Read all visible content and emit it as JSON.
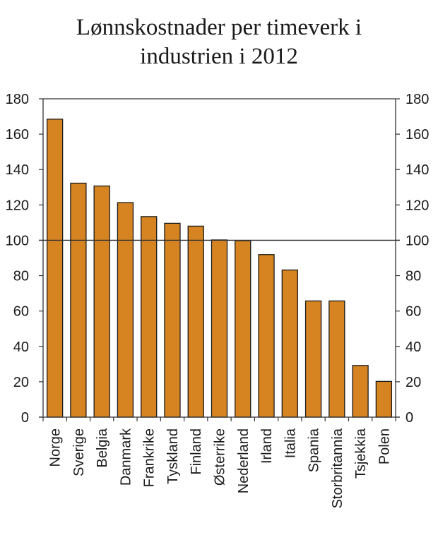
{
  "chart_data": {
    "type": "bar",
    "title": [
      "Lønnskostnader per timeverk i",
      "industrien i 2012"
    ],
    "categories": [
      "Norge",
      "Sverige",
      "Belgia",
      "Danmark",
      "Frankrike",
      "Tyskland",
      "Finland",
      "Østerrike",
      "Nederland",
      "Irland",
      "Italia",
      "Spania",
      "Storbritannia",
      "Tsjekkia",
      "Polen"
    ],
    "values": [
      168.5,
      132.3,
      130.7,
      121.3,
      113.4,
      109.6,
      108.0,
      100.2,
      99.8,
      91.9,
      83.2,
      65.7,
      65.7,
      29.2,
      20.2
    ],
    "ylim": [
      0,
      180
    ],
    "yticks": [
      0,
      20,
      40,
      60,
      80,
      100,
      120,
      140,
      160,
      180
    ],
    "y_axes": "left and right",
    "reference_line": 100,
    "grid": false,
    "bar_color": "#d68422",
    "bar_edge_color": "#1a1a1a"
  }
}
